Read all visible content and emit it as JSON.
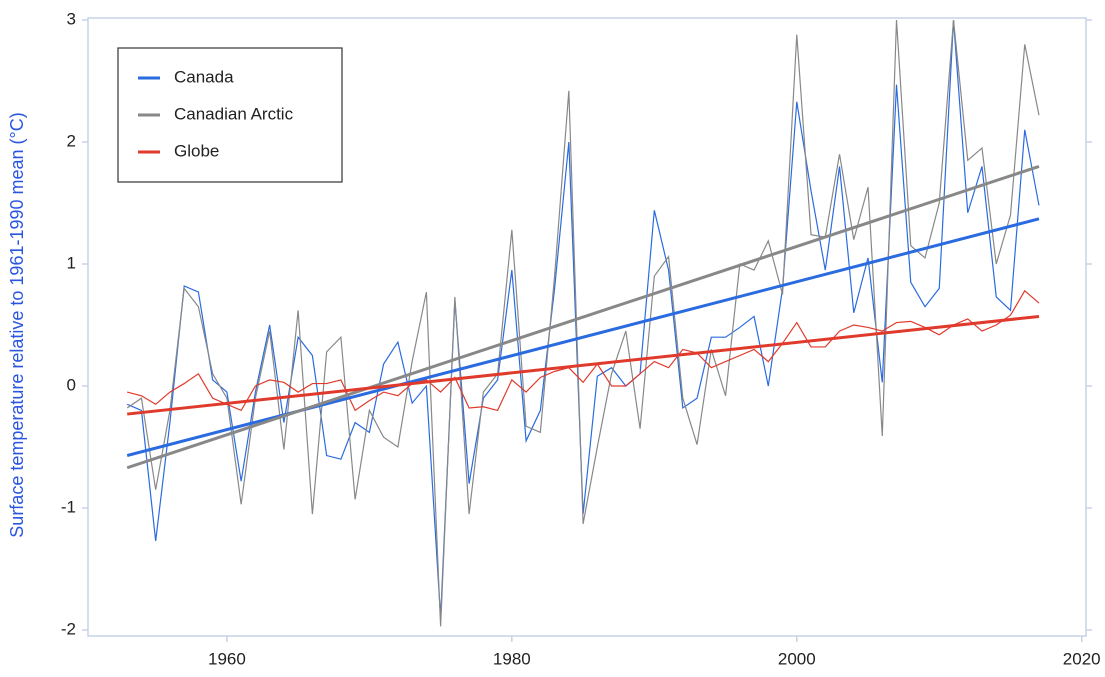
{
  "chart_data": {
    "type": "line",
    "y_label": "Surface temperature relative to 1961-1990 mean (°C)",
    "x": [
      1953,
      1954,
      1955,
      1956,
      1957,
      1958,
      1959,
      1960,
      1961,
      1962,
      1963,
      1964,
      1965,
      1966,
      1967,
      1968,
      1969,
      1970,
      1971,
      1972,
      1973,
      1974,
      1975,
      1976,
      1977,
      1978,
      1979,
      1980,
      1981,
      1982,
      1983,
      1984,
      1985,
      1986,
      1987,
      1988,
      1989,
      1990,
      1991,
      1992,
      1993,
      1994,
      1995,
      1996,
      1997,
      1998,
      1999,
      2000,
      2001,
      2002,
      2003,
      2004,
      2005,
      2006,
      2007,
      2008,
      2009,
      2010,
      2011,
      2012,
      2013,
      2014,
      2015,
      2016,
      2017
    ],
    "series": [
      {
        "name": "Canada",
        "color": "#2a6be0",
        "trend": [
          -0.57,
          1.37
        ],
        "values": [
          -0.15,
          -0.2,
          -1.27,
          -0.3,
          0.82,
          0.77,
          0.05,
          -0.05,
          -0.78,
          -0.05,
          0.5,
          -0.3,
          0.4,
          0.25,
          -0.57,
          -0.6,
          -0.3,
          -0.38,
          0.18,
          0.36,
          -0.14,
          0.0,
          -1.9,
          0.7,
          -0.8,
          -0.1,
          0.05,
          0.95,
          -0.45,
          -0.2,
          0.8,
          2.0,
          -1.05,
          0.08,
          0.15,
          0.0,
          0.1,
          1.44,
          0.95,
          -0.18,
          -0.1,
          0.4,
          0.4,
          0.48,
          0.57,
          0.0,
          0.8,
          2.33,
          1.6,
          0.95,
          1.8,
          0.6,
          1.05,
          0.03,
          2.47,
          0.85,
          0.65,
          0.8,
          3.0,
          1.42,
          1.8,
          0.73,
          0.62,
          2.1,
          1.48
        ]
      },
      {
        "name": "Canadian Arctic",
        "color": "#888888",
        "trend": [
          -0.67,
          1.8
        ],
        "values": [
          -0.18,
          -0.1,
          -0.85,
          -0.2,
          0.8,
          0.65,
          0.1,
          -0.1,
          -0.97,
          -0.1,
          0.45,
          -0.52,
          0.62,
          -1.05,
          0.28,
          0.4,
          -0.93,
          -0.2,
          -0.42,
          -0.5,
          0.2,
          0.77,
          -1.97,
          0.73,
          -1.05,
          -0.05,
          0.1,
          1.28,
          -0.33,
          -0.38,
          0.9,
          2.42,
          -1.13,
          -0.5,
          0.1,
          0.45,
          -0.35,
          0.9,
          1.06,
          -0.1,
          -0.48,
          0.3,
          -0.08,
          1.0,
          0.95,
          1.19,
          0.75,
          2.88,
          1.24,
          1.22,
          1.9,
          1.2,
          1.63,
          -0.41,
          3.0,
          1.15,
          1.05,
          1.5,
          3.0,
          1.85,
          1.95,
          1.0,
          1.4,
          2.8,
          2.22
        ]
      },
      {
        "name": "Globe",
        "color": "#e03a2c",
        "trend": [
          -0.23,
          0.57
        ],
        "values": [
          -0.05,
          -0.08,
          -0.15,
          -0.05,
          0.02,
          0.1,
          -0.1,
          -0.15,
          -0.2,
          0.0,
          0.05,
          0.03,
          -0.05,
          0.02,
          0.02,
          0.05,
          -0.2,
          -0.12,
          -0.05,
          -0.08,
          0.02,
          0.05,
          -0.05,
          0.07,
          -0.18,
          -0.17,
          -0.2,
          0.05,
          -0.05,
          0.07,
          0.12,
          0.15,
          0.03,
          0.18,
          0.0,
          0.0,
          0.1,
          0.2,
          0.15,
          0.3,
          0.27,
          0.15,
          0.2,
          0.25,
          0.3,
          0.2,
          0.35,
          0.52,
          0.32,
          0.32,
          0.45,
          0.5,
          0.48,
          0.45,
          0.52,
          0.53,
          0.48,
          0.42,
          0.5,
          0.55,
          0.45,
          0.5,
          0.58,
          0.78,
          0.68
        ]
      }
    ],
    "xlim": [
      1950.25,
      2020.3
    ],
    "xticks": [
      1960,
      1980,
      2000,
      2020
    ],
    "ylim": [
      -2,
      3
    ],
    "yticks": [
      -2,
      -1,
      0,
      1,
      2,
      3
    ],
    "legend": "upper-left"
  }
}
